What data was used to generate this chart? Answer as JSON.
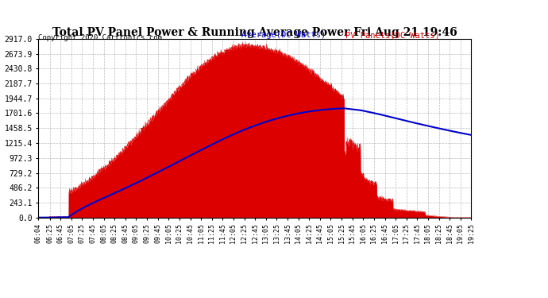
{
  "title": "Total PV Panel Power & Running Average Power Fri Aug 21 19:46",
  "copyright": "Copyright 2020 Cartronics.com",
  "legend_avg": "Average(DC Watts)",
  "legend_pv": "PV Panels(DC Watts)",
  "yticks": [
    0.0,
    243.1,
    486.2,
    729.2,
    972.3,
    1215.4,
    1458.5,
    1701.6,
    1944.7,
    2187.7,
    2430.8,
    2673.9,
    2917.0
  ],
  "ymax": 2917.0,
  "bg_color": "#ffffff",
  "fill_color": "#dd0000",
  "avg_color": "#0000cc",
  "grid_color": "#aaaaaa",
  "title_color": "#000000",
  "copyright_color": "#000000",
  "legend_avg_color": "#0000cc",
  "legend_pv_color": "#dd0000",
  "xtick_labels": [
    "06:04",
    "06:25",
    "06:45",
    "07:05",
    "07:25",
    "07:45",
    "08:05",
    "08:25",
    "08:45",
    "09:05",
    "09:25",
    "09:45",
    "10:05",
    "10:25",
    "10:45",
    "11:05",
    "11:25",
    "11:45",
    "12:05",
    "12:25",
    "12:45",
    "13:05",
    "13:25",
    "13:45",
    "14:05",
    "14:25",
    "14:45",
    "15:05",
    "15:25",
    "15:45",
    "16:05",
    "16:25",
    "16:45",
    "17:05",
    "17:25",
    "17:45",
    "18:05",
    "18:25",
    "18:45",
    "19:05",
    "19:25"
  ]
}
